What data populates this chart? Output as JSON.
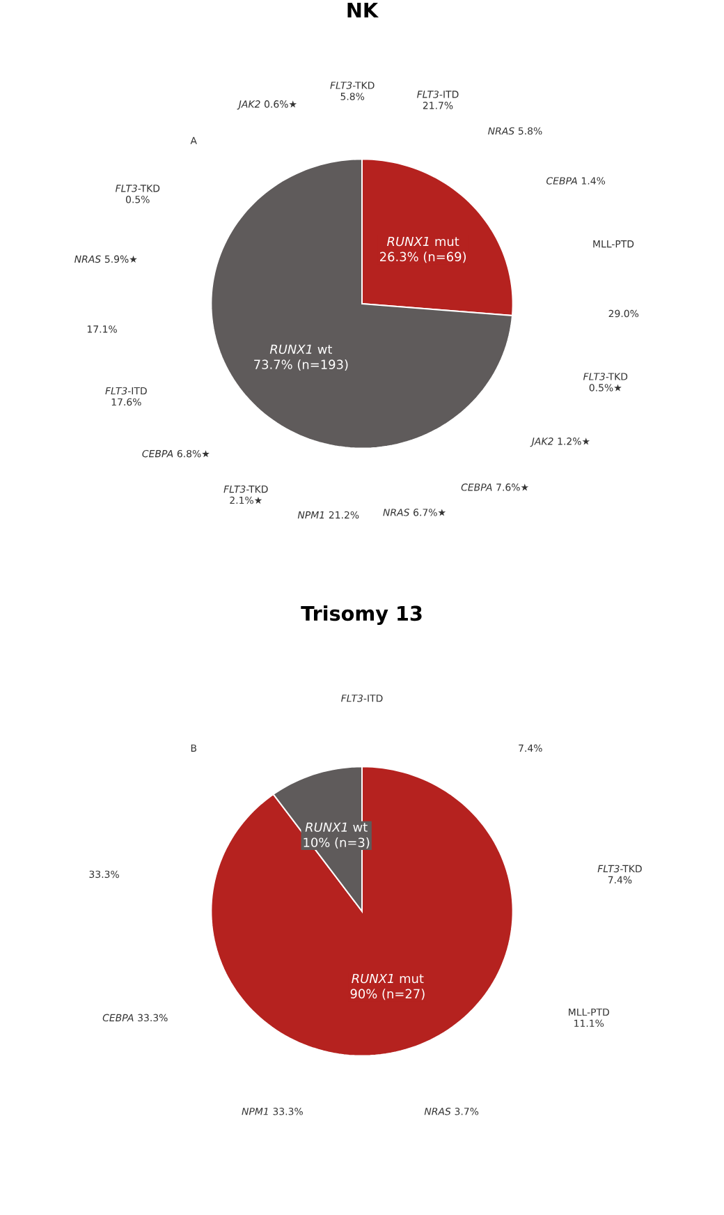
{
  "chart_data": [
    {
      "type": "pie",
      "title": "NK",
      "categories": [
        "*RUNX1* mut",
        "*RUNX1* wt"
      ],
      "values": [
        26.3,
        73.7
      ],
      "value_labels": [
        "26.3% (n=69)",
        "73.7% (n=193)"
      ],
      "colors": [
        "#b5221f",
        "#5f5b5b"
      ],
      "annotations": [
        "A",
        "*JAK2* 0.6%★",
        "*FLT3*-TKD 5.8%",
        "*FLT3*-ITD 21.7%",
        "*NRAS* 5.8%",
        "*CEBPA* 1.4%",
        "MLL-PTD",
        "29.0%",
        "*FLT3*-TKD 0.5%★",
        "*JAK2* 1.2%★",
        "*CEBPA* 7.6%★",
        "*NRAS* 6.7%★",
        "*NPM1* 21.2%",
        "*FLT3*-TKD 2.1%★",
        "*CEBPA* 6.8%★",
        "*FLT3*-ITD 17.6%",
        "17.1%",
        "*NRAS* 5.9%★",
        "*FLT3*-TKD 0.5%"
      ]
    },
    {
      "type": "pie",
      "title": "Trisomy 13",
      "categories": [
        "*RUNX1* mut",
        "*RUNX1* wt"
      ],
      "values": [
        90,
        10
      ],
      "value_labels": [
        "90% (n=27)",
        "10% (n=3)"
      ],
      "colors": [
        "#b5221f",
        "#5f5b5b"
      ],
      "annotations": [
        "B",
        "*FLT3*-ITD",
        "7.4%",
        "*FLT3*-TKD 7.4%",
        "MLL-PTD 11.1%",
        "*NRAS* 3.7%",
        "*NPM1* 33.3%",
        "*CEBPA* 33.3%",
        "33.3%"
      ]
    }
  ]
}
